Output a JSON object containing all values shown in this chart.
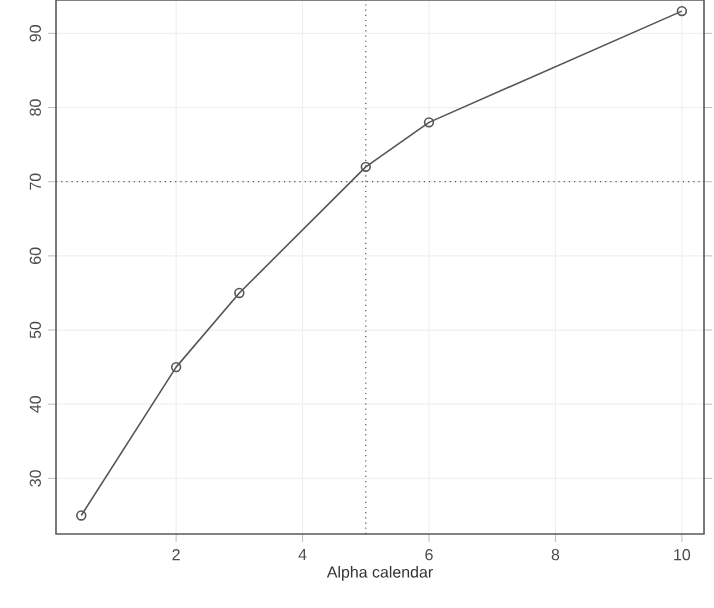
{
  "chart_data": {
    "type": "line",
    "xlabel": "Alpha calendar",
    "x": [
      0.5,
      2,
      3,
      5,
      6,
      10
    ],
    "series": [
      {
        "color": "#555555",
        "values": [
          25,
          45,
          55,
          72,
          78,
          93
        ]
      }
    ],
    "marker": "circle",
    "line_style": "solid",
    "grid": true,
    "xlim": [
      0.1,
      10.35
    ],
    "ylim": [
      22.5,
      94.5
    ],
    "xticks": [
      2,
      4,
      6,
      8,
      10
    ],
    "yticks": [
      30,
      40,
      50,
      60,
      70,
      80,
      90
    ],
    "ref_lines": [
      {
        "axis": "x",
        "value": 5,
        "color": "#555555",
        "line_style": "dotted"
      },
      {
        "axis": "y",
        "value": 70,
        "color": "#555555",
        "line_style": "dotted"
      }
    ]
  }
}
